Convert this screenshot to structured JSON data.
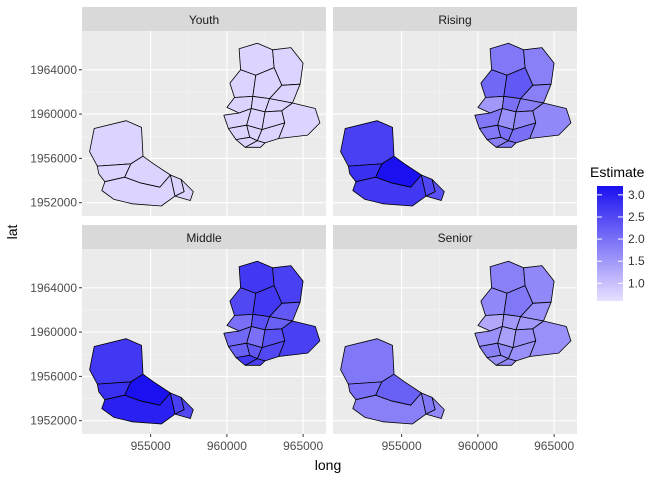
{
  "chart_data": {
    "type": "choropleth-facet",
    "xlabel": "long",
    "ylabel": "lat",
    "panels": [
      {
        "title": "Youth",
        "estimates": [
          0.75,
          0.75,
          0.75,
          0.75,
          0.75,
          0.75,
          0.75,
          0.75,
          0.75,
          0.75,
          0.75,
          0.75,
          0.75,
          0.75,
          0.75,
          0.75,
          0.75,
          0.75,
          0.75,
          0.75,
          0.75,
          0.75,
          0.75
        ]
      },
      {
        "title": "Rising",
        "estimates": [
          1.9,
          1.8,
          2.1,
          2.3,
          1.8,
          1.5,
          2.0,
          1.8,
          1.9,
          1.6,
          1.7,
          1.9,
          2.0,
          2.0,
          1.7,
          1.8,
          1.9,
          2.6,
          2.8,
          3.2,
          2.7,
          2.5,
          2.4
        ]
      },
      {
        "title": "Middle",
        "estimates": [
          2.7,
          2.6,
          2.5,
          2.7,
          2.3,
          2.0,
          2.4,
          2.2,
          2.1,
          2.0,
          2.4,
          2.2,
          2.3,
          2.5,
          2.6,
          2.7,
          2.6,
          2.7,
          2.8,
          3.2,
          3.0,
          2.6,
          2.5
        ]
      },
      {
        "title": "Senior",
        "estimates": [
          1.8,
          1.7,
          1.7,
          1.9,
          1.6,
          1.3,
          1.5,
          1.5,
          1.6,
          1.4,
          1.6,
          1.8,
          1.7,
          1.6,
          1.6,
          1.6,
          1.7,
          1.9,
          2.0,
          2.2,
          1.8,
          1.9,
          1.7
        ]
      }
    ],
    "x_ticks": [
      "955000",
      "960000",
      "965000"
    ],
    "y_ticks": [
      "1952000",
      "1956000",
      "1960000",
      "1964000"
    ],
    "x_tick_values": [
      955000,
      960000,
      965000
    ],
    "y_tick_values": [
      1952000,
      1956000,
      1960000,
      1964000
    ],
    "xlim": [
      950500,
      966500
    ],
    "ylim": [
      1950800,
      1967500
    ],
    "legend": {
      "title": "Estimate",
      "ticks": [
        "1.0",
        "1.5",
        "2.0",
        "2.5",
        "3.0"
      ],
      "tick_values": [
        1.0,
        1.5,
        2.0,
        2.5,
        3.0
      ],
      "range": [
        0.6,
        3.2
      ],
      "low_color": "#e8e0ff",
      "high_color": "#1a10f0",
      "position": "right"
    },
    "panel_background": "#ebebeb",
    "strip_background": "#d9d9d9",
    "grid": true
  }
}
